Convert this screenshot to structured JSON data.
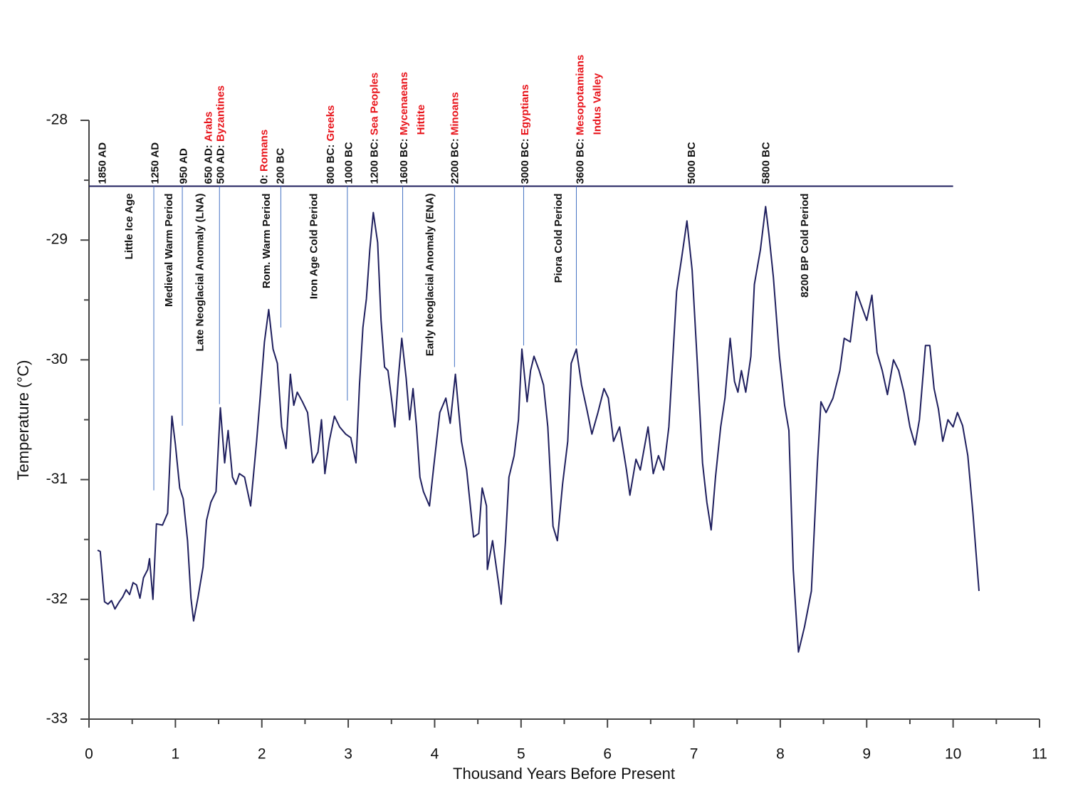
{
  "chart_data": {
    "type": "line",
    "xlabel": "Thousand Years Before Present",
    "ylabel": "Temperature (°C)",
    "xlim": [
      0,
      11
    ],
    "xticks": [
      0,
      1,
      2,
      3,
      4,
      5,
      6,
      7,
      8,
      9,
      10,
      11
    ],
    "ylim": [
      -33,
      -28
    ],
    "yticks": [
      -33,
      -32,
      -31,
      -30,
      -29,
      -28
    ],
    "color": "#1f1f5e",
    "x": [
      0.1,
      0.13,
      0.18,
      0.22,
      0.26,
      0.3,
      0.35,
      0.39,
      0.43,
      0.47,
      0.51,
      0.55,
      0.59,
      0.63,
      0.68,
      0.7,
      0.74,
      0.78,
      0.85,
      0.91,
      0.96,
      1.0,
      1.05,
      1.09,
      1.14,
      1.18,
      1.21,
      1.26,
      1.32,
      1.36,
      1.41,
      1.47,
      1.52,
      1.57,
      1.61,
      1.66,
      1.7,
      1.74,
      1.8,
      1.87,
      1.94,
      1.98,
      2.03,
      2.08,
      2.13,
      2.18,
      2.23,
      2.28,
      2.33,
      2.37,
      2.41,
      2.47,
      2.53,
      2.59,
      2.65,
      2.69,
      2.73,
      2.78,
      2.84,
      2.9,
      2.97,
      3.03,
      3.09,
      3.13,
      3.17,
      3.21,
      3.25,
      3.29,
      3.34,
      3.38,
      3.42,
      3.46,
      3.5,
      3.54,
      3.58,
      3.62,
      3.67,
      3.71,
      3.75,
      3.79,
      3.83,
      3.87,
      3.94,
      3.99,
      4.06,
      4.13,
      4.18,
      4.24,
      4.31,
      4.37,
      4.45,
      4.51,
      4.55,
      4.6,
      4.61,
      4.67,
      4.74,
      4.77,
      4.82,
      4.86,
      4.92,
      4.97,
      5.01,
      5.07,
      5.11,
      5.15,
      5.21,
      5.26,
      5.31,
      5.37,
      5.42,
      5.48,
      5.54,
      5.58,
      5.64,
      5.7,
      5.76,
      5.82,
      5.89,
      5.96,
      6.01,
      6.07,
      6.14,
      6.22,
      6.26,
      6.33,
      6.38,
      6.47,
      6.53,
      6.59,
      6.65,
      6.71,
      6.8,
      6.86,
      6.92,
      6.98,
      7.04,
      7.1,
      7.15,
      7.2,
      7.25,
      7.31,
      7.36,
      7.42,
      7.47,
      7.51,
      7.55,
      7.6,
      7.66,
      7.7,
      7.77,
      7.83,
      7.87,
      7.92,
      7.99,
      8.05,
      8.1,
      8.15,
      8.21,
      8.28,
      8.36,
      8.43,
      8.47,
      8.53,
      8.61,
      8.69,
      8.74,
      8.81,
      8.88,
      8.94,
      9.0,
      9.06,
      9.12,
      9.18,
      9.24,
      9.31,
      9.37,
      9.43,
      9.5,
      9.56,
      9.61,
      9.68,
      9.73,
      9.78,
      9.83,
      9.88,
      9.94,
      10.0,
      10.05,
      10.11,
      10.17,
      10.23,
      10.3
    ],
    "values": [
      -31.59,
      -31.6,
      -32.02,
      -32.04,
      -32.01,
      -32.08,
      -32.02,
      -31.98,
      -31.92,
      -31.96,
      -31.86,
      -31.88,
      -31.99,
      -31.82,
      -31.75,
      -31.66,
      -32.0,
      -31.37,
      -31.38,
      -31.28,
      -30.47,
      -30.71,
      -31.07,
      -31.16,
      -31.51,
      -31.99,
      -32.18,
      -31.99,
      -31.73,
      -31.34,
      -31.19,
      -31.1,
      -30.4,
      -30.86,
      -30.59,
      -30.98,
      -31.04,
      -30.95,
      -30.98,
      -31.22,
      -30.68,
      -30.32,
      -29.85,
      -29.58,
      -29.91,
      -30.03,
      -30.56,
      -30.74,
      -30.12,
      -30.38,
      -30.27,
      -30.35,
      -30.44,
      -30.86,
      -30.77,
      -30.5,
      -30.95,
      -30.68,
      -30.47,
      -30.56,
      -30.62,
      -30.65,
      -30.86,
      -30.21,
      -29.73,
      -29.49,
      -29.08,
      -28.77,
      -29.02,
      -29.67,
      -30.06,
      -30.09,
      -30.32,
      -30.56,
      -30.15,
      -29.82,
      -30.15,
      -30.5,
      -30.24,
      -30.56,
      -30.98,
      -31.1,
      -31.22,
      -30.89,
      -30.44,
      -30.32,
      -30.53,
      -30.12,
      -30.68,
      -30.92,
      -31.48,
      -31.45,
      -31.07,
      -31.22,
      -31.75,
      -31.51,
      -31.87,
      -32.04,
      -31.51,
      -30.98,
      -30.8,
      -30.5,
      -29.91,
      -30.35,
      -30.09,
      -29.97,
      -30.09,
      -30.21,
      -30.56,
      -31.39,
      -31.51,
      -31.04,
      -30.68,
      -30.03,
      -29.91,
      -30.21,
      -30.41,
      -30.62,
      -30.44,
      -30.24,
      -30.32,
      -30.68,
      -30.56,
      -30.92,
      -31.13,
      -30.83,
      -30.92,
      -30.56,
      -30.95,
      -30.8,
      -30.92,
      -30.56,
      -29.43,
      -29.14,
      -28.84,
      -29.25,
      -30.03,
      -30.86,
      -31.19,
      -31.42,
      -30.98,
      -30.56,
      -30.32,
      -29.82,
      -30.18,
      -30.27,
      -30.09,
      -30.27,
      -29.97,
      -29.37,
      -29.08,
      -28.72,
      -28.96,
      -29.31,
      -29.97,
      -30.38,
      -30.59,
      -31.75,
      -32.44,
      -32.23,
      -31.93,
      -30.86,
      -30.35,
      -30.44,
      -30.32,
      -30.09,
      -29.82,
      -29.85,
      -29.43,
      -29.55,
      -29.67,
      -29.46,
      -29.94,
      -30.09,
      -30.29,
      -30.0,
      -30.09,
      -30.27,
      -30.56,
      -30.71,
      -30.5,
      -29.88,
      -29.88,
      -30.24,
      -30.41,
      -30.68,
      -30.5,
      -30.56,
      -30.44,
      -30.55,
      -30.8,
      -31.28,
      -31.93
    ],
    "reference_line": {
      "y": -28.55,
      "x": [
        0,
        10.0
      ],
      "color": "#1f1f5e"
    },
    "marker_lines": {
      "color": "#4472c4",
      "items": [
        {
          "x": 0.75,
          "y": -31.09
        },
        {
          "x": 1.08,
          "y": -30.55
        },
        {
          "x": 1.51,
          "y": -30.37
        },
        {
          "x": 2.22,
          "y": -29.73
        },
        {
          "x": 2.99,
          "y": -30.34
        },
        {
          "x": 3.63,
          "y": -29.77
        },
        {
          "x": 4.23,
          "y": -30.06
        },
        {
          "x": 5.03,
          "y": -29.88
        },
        {
          "x": 5.64,
          "y": -29.88
        }
      ]
    },
    "date_labels": [
      {
        "x": 0.16,
        "label": "1850 AD"
      },
      {
        "x": 0.77,
        "label": "1250 AD"
      },
      {
        "x": 1.1,
        "label": "950 AD"
      },
      {
        "x": 1.39,
        "label": "650 AD:",
        "people": "Arabs"
      },
      {
        "x": 1.53,
        "label": "500 AD:",
        "people": "Byzantines"
      },
      {
        "x": 2.03,
        "label": "0:",
        "people": "Romans"
      },
      {
        "x": 2.22,
        "label": "200 BC"
      },
      {
        "x": 2.8,
        "label": "800 BC:",
        "people": "Greeks"
      },
      {
        "x": 3.01,
        "label": "1000 BC"
      },
      {
        "x": 3.31,
        "label": "1200 BC:",
        "people": "Sea Peoples"
      },
      {
        "x": 3.65,
        "label": "1600 BC:",
        "people": "Mycenaeans",
        "people2": "Hittite"
      },
      {
        "x": 4.24,
        "label": "2200 BC:",
        "people": "Minoans"
      },
      {
        "x": 5.05,
        "label": "3000 BC:",
        "people": "Egyptians"
      },
      {
        "x": 5.69,
        "label": "3600 BC:",
        "people": "Mesopotamians",
        "people2": "Indus Valley"
      },
      {
        "x": 6.98,
        "label": "5000 BC"
      },
      {
        "x": 7.84,
        "label": "5800 BC"
      }
    ],
    "period_labels": [
      {
        "x": 0.47,
        "label": "Little Ice Age"
      },
      {
        "x": 0.93,
        "label": "Medieval Warm Period"
      },
      {
        "x": 1.29,
        "label": "Late Neoglacial Anomaly (LNA)"
      },
      {
        "x": 2.06,
        "label": "Rom. Warm Period"
      },
      {
        "x": 2.61,
        "label": "Iron Age Cold Period"
      },
      {
        "x": 3.95,
        "label": "Early Neoglacial Anomaly (ENA)"
      },
      {
        "x": 5.44,
        "label": "Piora Cold Period"
      },
      {
        "x": 8.29,
        "label": "8200 BP Cold Period"
      }
    ]
  }
}
